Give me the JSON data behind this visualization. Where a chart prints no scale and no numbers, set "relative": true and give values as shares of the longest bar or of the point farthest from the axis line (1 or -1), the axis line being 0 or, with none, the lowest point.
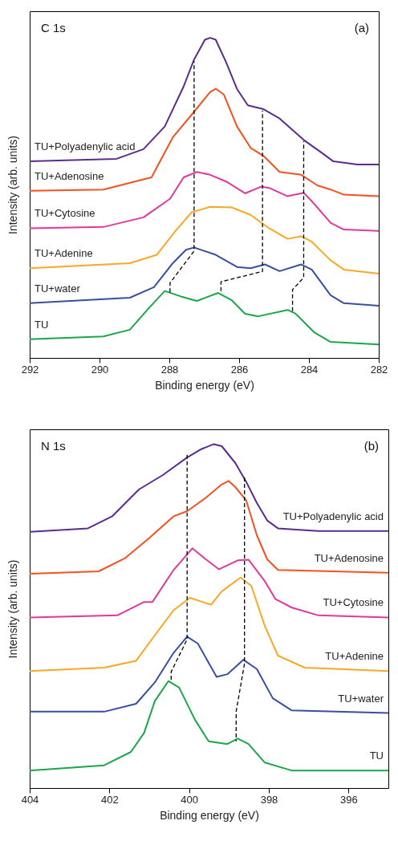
{
  "chart_data": [
    {
      "type": "line",
      "relative": true,
      "xlabel": "Binding energy (eV)",
      "ylabel": "Intensity (arb. units)",
      "xlim": [
        292,
        282
      ],
      "xticks": [
        292,
        290,
        288,
        286,
        284,
        282
      ],
      "annotations": [
        "C 1s",
        "(a)"
      ],
      "series": [
        {
          "name": "TU+Polyadenylic acid",
          "color": "#5b2c8f",
          "x": [
            292,
            289.51,
            288.74,
            288.13,
            287.59,
            287.29,
            286.98,
            286.83,
            286.67,
            286.37,
            286.06,
            285.75,
            285.3,
            284.84,
            284.15,
            283.61,
            283.3,
            282.61,
            282
          ],
          "values": [
            0.614,
            0.622,
            0.652,
            0.723,
            0.848,
            0.932,
            0.994,
            1.0,
            0.994,
            0.923,
            0.84,
            0.789,
            0.777,
            0.748,
            0.681,
            0.639,
            0.614,
            0.604,
            0.604
          ]
        },
        {
          "name": "TU+Adenosine",
          "color": "#f4511e",
          "x": [
            292,
            289.89,
            288.51,
            287.9,
            287.29,
            286.83,
            286.67,
            286.44,
            286.06,
            285.67,
            285.3,
            284.84,
            284.22,
            283.76,
            283.38,
            283.0,
            282
          ],
          "values": [
            0.522,
            0.526,
            0.564,
            0.689,
            0.769,
            0.831,
            0.841,
            0.823,
            0.723,
            0.656,
            0.631,
            0.581,
            0.572,
            0.539,
            0.526,
            0.51,
            0.505
          ]
        },
        {
          "name": "TU+Cytosine",
          "color": "#e0389b",
          "x": [
            292,
            289.89,
            288.74,
            287.98,
            287.59,
            287.21,
            286.83,
            286.37,
            285.83,
            285.37,
            285.14,
            284.61,
            284.15,
            283.84,
            283.38,
            283.0,
            282
          ],
          "values": [
            0.405,
            0.409,
            0.439,
            0.497,
            0.564,
            0.581,
            0.572,
            0.551,
            0.514,
            0.535,
            0.531,
            0.505,
            0.516,
            0.48,
            0.422,
            0.401,
            0.397
          ]
        },
        {
          "name": "TU+Adenine",
          "color": "#f9a825",
          "x": [
            292,
            289.13,
            288.36,
            287.82,
            287.36,
            286.83,
            286.21,
            285.67,
            285.14,
            284.61,
            284.22,
            283.92,
            283.38,
            283.0,
            282
          ],
          "values": [
            0.28,
            0.296,
            0.322,
            0.397,
            0.455,
            0.472,
            0.47,
            0.447,
            0.405,
            0.372,
            0.38,
            0.363,
            0.305,
            0.276,
            0.263
          ]
        },
        {
          "name": "TU+water",
          "color": "#3a4ea0",
          "x": [
            292,
            289.13,
            288.44,
            287.9,
            287.52,
            287.29,
            286.67,
            286.06,
            285.67,
            285.26,
            284.84,
            284.22,
            283.92,
            283.38,
            283.0,
            282
          ],
          "values": [
            0.171,
            0.188,
            0.221,
            0.296,
            0.338,
            0.345,
            0.322,
            0.284,
            0.28,
            0.292,
            0.271,
            0.292,
            0.276,
            0.196,
            0.171,
            0.163
          ]
        },
        {
          "name": "TU",
          "color": "#1aa64b",
          "x": [
            292,
            289.89,
            289.13,
            288.59,
            288.13,
            287.67,
            287.21,
            286.6,
            286.21,
            285.83,
            285.45,
            284.61,
            284.38,
            283.84,
            283.38,
            282
          ],
          "values": [
            0.058,
            0.067,
            0.088,
            0.155,
            0.209,
            0.192,
            0.178,
            0.203,
            0.18,
            0.138,
            0.13,
            0.15,
            0.138,
            0.079,
            0.05,
            0.042
          ]
        },
        {
          "type": "line",
          "line_style": "dashed",
          "color": "#000000",
          "x": [
            287.98,
            287.98,
            287.29,
            287.29
          ],
          "values": [
            0.205,
            0.234,
            0.334,
            0.927
          ]
        },
        {
          "type": "line",
          "line_style": "dashed",
          "color": "#000000",
          "x": [
            286.52,
            286.52,
            285.33,
            285.33
          ],
          "values": [
            0.209,
            0.238,
            0.27,
            0.773
          ]
        },
        {
          "type": "line",
          "line_style": "dashed",
          "color": "#000000",
          "x": [
            284.47,
            284.47,
            284.15,
            284.15
          ],
          "values": [
            0.146,
            0.213,
            0.251,
            0.677
          ]
        }
      ]
    },
    {
      "type": "line",
      "relative": true,
      "xlabel": "Binding energy (eV)",
      "ylabel": "Intensity (arb. units)",
      "xlim": [
        404,
        395
      ],
      "xticks": [
        404,
        402,
        400,
        398,
        396
      ],
      "annotations": [
        "N 1s",
        "(b)"
      ],
      "series": [
        {
          "name": "TU+Polyadenylic acid",
          "color": "#5b2c8f",
          "x": [
            404,
            402.54,
            401.93,
            401.26,
            400.66,
            400.05,
            399.72,
            399.38,
            399.18,
            398.84,
            398.57,
            398.3,
            398.04,
            397.77,
            396.76,
            395
          ],
          "values": [
            0.745,
            0.755,
            0.79,
            0.868,
            0.91,
            0.961,
            0.984,
            1.0,
            0.994,
            0.945,
            0.891,
            0.829,
            0.778,
            0.755,
            0.747,
            0.747
          ]
        },
        {
          "name": "TU+Adenosine",
          "color": "#f4511e",
          "x": [
            404,
            402.27,
            401.6,
            400.99,
            400.39,
            400.05,
            399.58,
            399.18,
            399.01,
            398.84,
            398.57,
            398.3,
            398.04,
            397.77,
            395
          ],
          "values": [
            0.623,
            0.63,
            0.669,
            0.728,
            0.79,
            0.805,
            0.844,
            0.883,
            0.893,
            0.875,
            0.837,
            0.735,
            0.665,
            0.634,
            0.626
          ]
        },
        {
          "name": "TU+Cytosine",
          "color": "#e0389b",
          "x": [
            404,
            401.8,
            401.13,
            400.92,
            400.39,
            399.92,
            399.58,
            399.25,
            398.78,
            398.51,
            398.11,
            397.83,
            397.43,
            396.76,
            395
          ],
          "values": [
            0.496,
            0.502,
            0.541,
            0.541,
            0.634,
            0.697,
            0.665,
            0.636,
            0.662,
            0.664,
            0.603,
            0.549,
            0.525,
            0.502,
            0.496
          ]
        },
        {
          "name": "TU+Adenine",
          "color": "#f9a825",
          "x": [
            404,
            402.13,
            401.33,
            400.79,
            400.39,
            399.98,
            399.45,
            399.18,
            398.71,
            398.44,
            398.37,
            398.1,
            397.77,
            397.1,
            395
          ],
          "values": [
            0.34,
            0.35,
            0.37,
            0.455,
            0.517,
            0.553,
            0.533,
            0.572,
            0.612,
            0.588,
            0.564,
            0.471,
            0.385,
            0.35,
            0.34
          ]
        },
        {
          "name": "TU+water",
          "color": "#3a4ea0",
          "x": [
            404,
            402.13,
            401.33,
            400.86,
            400.39,
            400.05,
            399.78,
            399.31,
            399.04,
            398.64,
            398.3,
            397.9,
            397.43,
            395
          ],
          "values": [
            0.222,
            0.222,
            0.245,
            0.307,
            0.393,
            0.44,
            0.42,
            0.323,
            0.331,
            0.373,
            0.346,
            0.261,
            0.226,
            0.218
          ]
        },
        {
          "name": "TU",
          "color": "#1aa64b",
          "x": [
            404,
            402.13,
            401.46,
            401.13,
            400.86,
            400.52,
            400.25,
            399.85,
            399.51,
            399.04,
            398.78,
            398.51,
            398.1,
            397.43,
            395
          ],
          "values": [
            0.051,
            0.066,
            0.105,
            0.16,
            0.253,
            0.311,
            0.292,
            0.198,
            0.136,
            0.128,
            0.144,
            0.128,
            0.074,
            0.051,
            0.051
          ]
        },
        {
          "type": "line",
          "line_style": "dashed",
          "color": "#000000",
          "x": [
            400.05,
            400.05,
            400.45,
            400.45
          ],
          "values": [
            0.969,
            0.432,
            0.338,
            0.311
          ]
        },
        {
          "type": "line",
          "line_style": "dashed",
          "color": "#000000",
          "x": [
            398.61,
            398.61,
            398.82,
            398.82
          ],
          "values": [
            0.903,
            0.362,
            0.222,
            0.136
          ]
        }
      ]
    }
  ]
}
